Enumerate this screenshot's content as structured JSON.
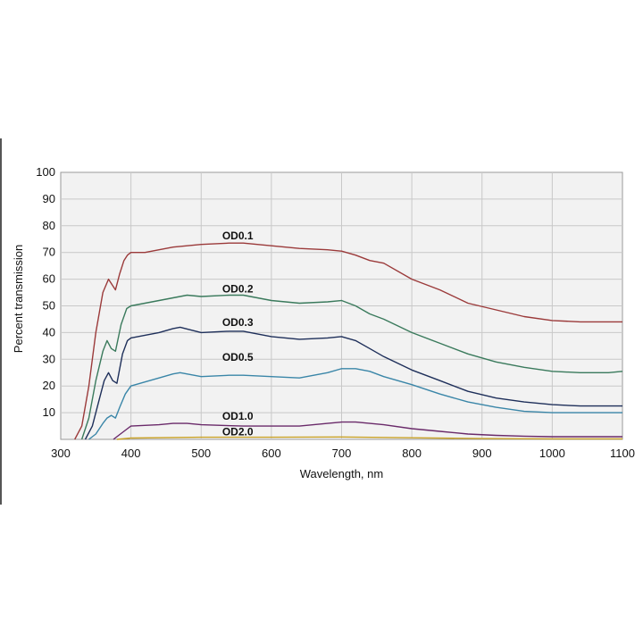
{
  "chart_data": {
    "type": "line",
    "title": "",
    "xlabel": "Wavelength, nm",
    "ylabel": "Percent transmission",
    "xlim": [
      300,
      1100
    ],
    "ylim": [
      0,
      100
    ],
    "x_ticks": [
      "300",
      "400",
      "500",
      "600",
      "700",
      "800",
      "900",
      "1000",
      "1100"
    ],
    "y_ticks": [
      "10",
      "20",
      "30",
      "40",
      "50",
      "60",
      "70",
      "80",
      "90",
      "100"
    ],
    "grid": true,
    "legend": "none",
    "background_color": "#f2f2f2",
    "series": [
      {
        "name": "OD0.1",
        "color": "#9b3a3a",
        "label_at": [
          530,
          75
        ],
        "points": [
          [
            320,
            0
          ],
          [
            330,
            5
          ],
          [
            340,
            20
          ],
          [
            350,
            40
          ],
          [
            360,
            55
          ],
          [
            368,
            60
          ],
          [
            373,
            58
          ],
          [
            378,
            56
          ],
          [
            384,
            62
          ],
          [
            390,
            67
          ],
          [
            395,
            69
          ],
          [
            400,
            70
          ],
          [
            420,
            70
          ],
          [
            440,
            71
          ],
          [
            460,
            72
          ],
          [
            480,
            72.5
          ],
          [
            500,
            73
          ],
          [
            540,
            73.5
          ],
          [
            560,
            73.5
          ],
          [
            600,
            72.5
          ],
          [
            640,
            71.5
          ],
          [
            680,
            71
          ],
          [
            700,
            70.5
          ],
          [
            720,
            69
          ],
          [
            740,
            67
          ],
          [
            760,
            66
          ],
          [
            800,
            60
          ],
          [
            840,
            56
          ],
          [
            880,
            51
          ],
          [
            920,
            48.5
          ],
          [
            960,
            46
          ],
          [
            1000,
            44.5
          ],
          [
            1040,
            44
          ],
          [
            1080,
            44
          ],
          [
            1100,
            44
          ]
        ]
      },
      {
        "name": "OD0.2",
        "color": "#3a7a5c",
        "label_at": [
          530,
          55
        ],
        "points": [
          [
            330,
            0
          ],
          [
            340,
            8
          ],
          [
            350,
            22
          ],
          [
            360,
            33
          ],
          [
            366,
            37
          ],
          [
            372,
            34
          ],
          [
            378,
            33
          ],
          [
            386,
            43
          ],
          [
            394,
            49
          ],
          [
            400,
            50
          ],
          [
            420,
            51
          ],
          [
            440,
            52
          ],
          [
            460,
            53
          ],
          [
            480,
            54
          ],
          [
            500,
            53.5
          ],
          [
            540,
            54
          ],
          [
            560,
            54
          ],
          [
            600,
            52
          ],
          [
            640,
            51
          ],
          [
            680,
            51.5
          ],
          [
            700,
            52
          ],
          [
            720,
            50
          ],
          [
            740,
            47
          ],
          [
            760,
            45
          ],
          [
            800,
            40
          ],
          [
            840,
            36
          ],
          [
            880,
            32
          ],
          [
            920,
            29
          ],
          [
            960,
            27
          ],
          [
            1000,
            25.5
          ],
          [
            1040,
            25
          ],
          [
            1080,
            25
          ],
          [
            1100,
            25.5
          ]
        ]
      },
      {
        "name": "OD0.3",
        "color": "#1e2f5a",
        "label_at": [
          530,
          42.5
        ],
        "points": [
          [
            335,
            0
          ],
          [
            345,
            5
          ],
          [
            355,
            15
          ],
          [
            362,
            22
          ],
          [
            368,
            25
          ],
          [
            374,
            22
          ],
          [
            380,
            21
          ],
          [
            388,
            32
          ],
          [
            395,
            37
          ],
          [
            400,
            38
          ],
          [
            420,
            39
          ],
          [
            440,
            40
          ],
          [
            460,
            41.5
          ],
          [
            470,
            42
          ],
          [
            500,
            40
          ],
          [
            540,
            40.5
          ],
          [
            560,
            40.5
          ],
          [
            600,
            38.5
          ],
          [
            640,
            37.5
          ],
          [
            680,
            38
          ],
          [
            700,
            38.5
          ],
          [
            720,
            37
          ],
          [
            740,
            34
          ],
          [
            760,
            31
          ],
          [
            800,
            26
          ],
          [
            840,
            22
          ],
          [
            880,
            18
          ],
          [
            920,
            15.5
          ],
          [
            960,
            14
          ],
          [
            1000,
            13
          ],
          [
            1040,
            12.5
          ],
          [
            1080,
            12.5
          ],
          [
            1100,
            12.5
          ]
        ]
      },
      {
        "name": "OD0.5",
        "color": "#3a86a8",
        "label_at": [
          530,
          29.5
        ],
        "points": [
          [
            340,
            0
          ],
          [
            350,
            2
          ],
          [
            360,
            6
          ],
          [
            366,
            8
          ],
          [
            372,
            9
          ],
          [
            378,
            8
          ],
          [
            384,
            12
          ],
          [
            392,
            17
          ],
          [
            400,
            20
          ],
          [
            420,
            21.5
          ],
          [
            440,
            23
          ],
          [
            460,
            24.5
          ],
          [
            470,
            25
          ],
          [
            500,
            23.5
          ],
          [
            540,
            24
          ],
          [
            560,
            24
          ],
          [
            600,
            23.5
          ],
          [
            640,
            23
          ],
          [
            680,
            25
          ],
          [
            700,
            26.5
          ],
          [
            720,
            26.5
          ],
          [
            740,
            25.5
          ],
          [
            760,
            23.5
          ],
          [
            800,
            20.5
          ],
          [
            840,
            17
          ],
          [
            880,
            14
          ],
          [
            920,
            12
          ],
          [
            960,
            10.5
          ],
          [
            1000,
            10
          ],
          [
            1040,
            10
          ],
          [
            1080,
            10
          ],
          [
            1100,
            10
          ]
        ]
      },
      {
        "name": "OD1.0",
        "color": "#6a2a6a",
        "label_at": [
          530,
          7.3
        ],
        "points": [
          [
            375,
            0
          ],
          [
            385,
            2
          ],
          [
            395,
            4
          ],
          [
            400,
            5
          ],
          [
            440,
            5.5
          ],
          [
            460,
            6
          ],
          [
            480,
            6
          ],
          [
            500,
            5.5
          ],
          [
            560,
            5
          ],
          [
            640,
            5
          ],
          [
            680,
            6
          ],
          [
            700,
            6.5
          ],
          [
            720,
            6.5
          ],
          [
            760,
            5.5
          ],
          [
            800,
            4
          ],
          [
            840,
            3
          ],
          [
            880,
            2
          ],
          [
            920,
            1.5
          ],
          [
            960,
            1.2
          ],
          [
            1000,
            1
          ],
          [
            1100,
            1
          ]
        ]
      },
      {
        "name": "OD2.0",
        "color": "#c9a227",
        "label_at": [
          530,
          1.5
        ],
        "points": [
          [
            380,
            0
          ],
          [
            400,
            0.5
          ],
          [
            500,
            0.8
          ],
          [
            600,
            0.8
          ],
          [
            700,
            0.9
          ],
          [
            800,
            0.6
          ],
          [
            900,
            0.3
          ],
          [
            1000,
            0.2
          ],
          [
            1100,
            0.2
          ]
        ]
      }
    ]
  }
}
